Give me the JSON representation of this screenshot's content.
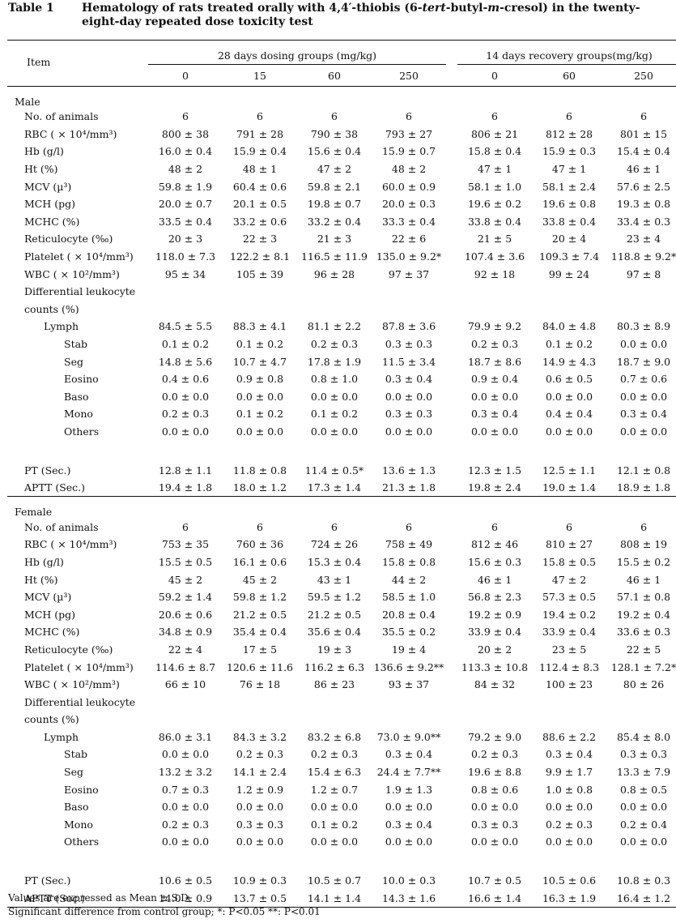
{
  "caption": {
    "label": "Table 1",
    "title_before": "Hematology of rats treated orally with 4,4′-thiobis (6-",
    "title_italic1": "tert",
    "title_mid": "-butyl-",
    "title_italic2": "m",
    "title_after": "-cresol) in the twenty-eight-day repeated dose toxicity test"
  },
  "header": {
    "item": "Item",
    "group1": "28 days dosing groups (mg/kg)",
    "group2": "14 days recovery groups(mg/kg)",
    "doses1": [
      "0",
      "15",
      "60",
      "250"
    ],
    "doses2": [
      "0",
      "60",
      "250"
    ]
  },
  "sections": [
    {
      "title": "Male",
      "rows": [
        {
          "label": "No. of animals",
          "indent": 1,
          "values": [
            "6",
            "6",
            "6",
            "6",
            "6",
            "6",
            "6"
          ]
        },
        {
          "label": "RBC ( × 10⁴/mm³)",
          "indent": 1,
          "values": [
            "800 ± 38",
            "791 ± 28",
            "790 ± 38",
            "793 ± 27",
            "806 ± 21",
            "812 ± 28",
            "801 ± 15"
          ]
        },
        {
          "label": "Hb (g/l)",
          "indent": 1,
          "values": [
            "16.0 ± 0.4",
            "15.9 ± 0.4",
            "15.6 ± 0.4",
            "15.9 ± 0.7",
            "15.8 ± 0.4",
            "15.9 ± 0.3",
            "15.4 ± 0.4"
          ]
        },
        {
          "label": "Ht (%)",
          "indent": 1,
          "values": [
            "48 ± 2",
            "48 ± 1",
            "47 ± 2",
            "48 ± 2",
            "47 ± 1",
            "47 ± 1",
            "46 ± 1"
          ]
        },
        {
          "label": "MCV (µ³)",
          "indent": 1,
          "values": [
            "59.8 ± 1.9",
            "60.4 ± 0.6",
            "59.8 ± 2.1",
            "60.0 ± 0.9",
            "58.1 ± 1.0",
            "58.1 ± 2.4",
            "57.6 ± 2.5"
          ]
        },
        {
          "label": "MCH (pg)",
          "indent": 1,
          "values": [
            "20.0 ± 0.7",
            "20.1 ± 0.5",
            "19.8 ± 0.7",
            "20.0 ± 0.3",
            "19.6 ± 0.2",
            "19.6 ± 0.8",
            "19.3 ± 0.8"
          ]
        },
        {
          "label": "MCHC (%)",
          "indent": 1,
          "values": [
            "33.5 ± 0.4",
            "33.2 ± 0.6",
            "33.2 ± 0.4",
            "33.3 ± 0.4",
            "33.8 ± 0.4",
            "33.8 ± 0.4",
            "33.4 ± 0.3"
          ]
        },
        {
          "label": "Reticulocyte (‰)",
          "indent": 1,
          "values": [
            "20 ± 3",
            "22 ± 3",
            "21 ± 3",
            "22 ± 6",
            "21 ± 5",
            "20 ± 4",
            "23 ± 4"
          ]
        },
        {
          "label": "Platelet ( × 10⁴/mm³)",
          "indent": 1,
          "values": [
            "118.0 ± 7.3",
            "122.2 ± 8.1",
            "116.5 ± 11.9",
            "135.0 ± 9.2*",
            "107.4 ± 3.6",
            "109.3 ± 7.4",
            "118.8 ± 9.2*"
          ]
        },
        {
          "label": "WBC ( × 10²/mm³)",
          "indent": 1,
          "values": [
            "95 ± 34",
            "105 ± 39",
            "96 ± 28",
            "97 ± 37",
            "92 ± 18",
            "99 ± 24",
            "97 ± 8"
          ]
        },
        {
          "label": "Differential leukocyte",
          "indent": 1,
          "values": [
            "",
            "",
            "",
            "",
            "",
            "",
            ""
          ]
        },
        {
          "label": "counts (%)",
          "indent": 1,
          "values": [
            "",
            "",
            "",
            "",
            "",
            "",
            ""
          ]
        },
        {
          "label": "Lymph",
          "indent": 2,
          "values": [
            "84.5 ± 5.5",
            "88.3 ± 4.1",
            "81.1 ± 2.2",
            "87.8 ± 3.6",
            "79.9 ± 9.2",
            "84.0 ± 4.8",
            "80.3 ± 8.9"
          ]
        },
        {
          "label": "Stab",
          "indent": 3,
          "values": [
            "0.1 ± 0.2",
            "0.1 ± 0.2",
            "0.2 ± 0.3",
            "0.3 ± 0.3",
            "0.2 ± 0.3",
            "0.1 ± 0.2",
            "0.0 ± 0.0"
          ]
        },
        {
          "label": "Seg",
          "indent": 3,
          "values": [
            "14.8 ± 5.6",
            "10.7 ± 4.7",
            "17.8 ± 1.9",
            "11.5 ± 3.4",
            "18.7 ± 8.6",
            "14.9 ± 4.3",
            "18.7 ± 9.0"
          ]
        },
        {
          "label": "Eosino",
          "indent": 3,
          "values": [
            "0.4 ± 0.6",
            "0.9 ± 0.8",
            "0.8 ± 1.0",
            "0.3 ± 0.4",
            "0.9 ± 0.4",
            "0.6 ± 0.5",
            "0.7 ± 0.6"
          ]
        },
        {
          "label": "Baso",
          "indent": 3,
          "values": [
            "0.0 ± 0.0",
            "0.0 ± 0.0",
            "0.0 ± 0.0",
            "0.0 ± 0.0",
            "0.0 ± 0.0",
            "0.0 ± 0.0",
            "0.0 ± 0.0"
          ]
        },
        {
          "label": "Mono",
          "indent": 3,
          "values": [
            "0.2 ± 0.3",
            "0.1 ± 0.2",
            "0.1 ± 0.2",
            "0.3 ± 0.3",
            "0.3 ± 0.4",
            "0.4 ± 0.4",
            "0.3 ± 0.4"
          ]
        },
        {
          "label": "Others",
          "indent": 3,
          "values": [
            "0.0 ± 0.0",
            "0.0 ± 0.0",
            "0.0 ± 0.0",
            "0.0 ± 0.0",
            "0.0 ± 0.0",
            "0.0 ± 0.0",
            "0.0 ± 0.0"
          ]
        },
        {
          "label": "",
          "indent": 1,
          "blank": true,
          "values": [
            "",
            "",
            "",
            "",
            "",
            "",
            ""
          ]
        },
        {
          "label": "PT (Sec.)",
          "indent": 1,
          "values": [
            "12.8 ± 1.1",
            "11.8 ± 0.8",
            "11.4 ± 0.5*",
            "13.6 ± 1.3",
            "12.3 ± 1.5",
            "12.5 ± 1.1",
            "12.1 ± 0.8"
          ]
        },
        {
          "label": "APTT (Sec.)",
          "indent": 1,
          "values": [
            "19.4 ± 1.8",
            "18.0 ± 1.2",
            "17.3 ± 1.4",
            "21.3 ± 1.8",
            "19.8 ± 2.4",
            "19.0 ± 1.4",
            "18.9 ± 1.8"
          ]
        }
      ]
    },
    {
      "title": "Female",
      "rows": [
        {
          "label": "No. of animals",
          "indent": 1,
          "values": [
            "6",
            "6",
            "6",
            "6",
            "6",
            "6",
            "6"
          ]
        },
        {
          "label": "RBC ( × 10⁴/mm³)",
          "indent": 1,
          "values": [
            "753 ± 35",
            "760 ± 36",
            "724 ± 26",
            "758 ± 49",
            "812 ± 46",
            "810 ± 27",
            "808 ± 19"
          ]
        },
        {
          "label": "Hb (g/l)",
          "indent": 1,
          "values": [
            "15.5 ± 0.5",
            "16.1 ± 0.6",
            "15.3 ± 0.4",
            "15.8 ± 0.8",
            "15.6 ± 0.3",
            "15.8 ± 0.5",
            "15.5 ± 0.2"
          ]
        },
        {
          "label": "Ht (%)",
          "indent": 1,
          "values": [
            "45 ± 2",
            "45 ± 2",
            "43 ± 1",
            "44 ± 2",
            "46 ± 1",
            "47 ± 2",
            "46 ± 1"
          ]
        },
        {
          "label": "MCV (µ³)",
          "indent": 1,
          "values": [
            "59.2 ± 1.4",
            "59.8 ± 1.2",
            "59.5 ± 1.2",
            "58.5 ± 1.0",
            "56.8 ± 2.3",
            "57.3 ± 0.5",
            "57.1 ± 0.8"
          ]
        },
        {
          "label": "MCH (pg)",
          "indent": 1,
          "values": [
            "20.6 ± 0.6",
            "21.2 ± 0.5",
            "21.2 ± 0.5",
            "20.8 ± 0.4",
            "19.2 ± 0.9",
            "19.4 ± 0.2",
            "19.2 ± 0.4"
          ]
        },
        {
          "label": "MCHC (%)",
          "indent": 1,
          "values": [
            "34.8 ± 0.9",
            "35.4 ± 0.4",
            "35.6 ± 0.4",
            "35.5 ± 0.2",
            "33.9 ± 0.4",
            "33.9 ± 0.4",
            "33.6 ± 0.3"
          ]
        },
        {
          "label": "Reticulocyte (‰)",
          "indent": 1,
          "values": [
            "22 ± 4",
            "17 ± 5",
            "19 ± 3",
            "19 ± 4",
            "20 ± 2",
            "23 ± 5",
            "22 ± 5"
          ]
        },
        {
          "label": "Platelet ( × 10⁴/mm³)",
          "indent": 1,
          "values": [
            "114.6 ± 8.7",
            "120.6 ± 11.6",
            "116.2 ± 6.3",
            "136.6 ± 9.2**",
            "113.3 ± 10.8",
            "112.4 ± 8.3",
            "128.1 ± 7.2*"
          ]
        },
        {
          "label": "WBC ( × 10²/mm³)",
          "indent": 1,
          "values": [
            "66 ± 10",
            "76 ± 18",
            "86 ± 23",
            "93 ± 37",
            "84 ± 32",
            "100 ± 23",
            "80 ± 26"
          ]
        },
        {
          "label": "Differential leukocyte",
          "indent": 1,
          "values": [
            "",
            "",
            "",
            "",
            "",
            "",
            ""
          ]
        },
        {
          "label": "counts (%)",
          "indent": 1,
          "values": [
            "",
            "",
            "",
            "",
            "",
            "",
            ""
          ]
        },
        {
          "label": "Lymph",
          "indent": 2,
          "values": [
            "86.0 ± 3.1",
            "84.3 ± 3.2",
            "83.2 ± 6.8",
            "73.0 ± 9.0**",
            "79.2 ± 9.0",
            "88.6 ± 2.2",
            "85.4 ± 8.0"
          ]
        },
        {
          "label": "Stab",
          "indent": 3,
          "values": [
            "0.0 ± 0.0",
            "0.2 ± 0.3",
            "0.2 ± 0.3",
            "0.3 ± 0.4",
            "0.2 ± 0.3",
            "0.3 ± 0.4",
            "0.3 ± 0.3"
          ]
        },
        {
          "label": "Seg",
          "indent": 3,
          "values": [
            "13.2 ± 3.2",
            "14.1 ± 2.4",
            "15.4 ± 6.3",
            "24.4 ± 7.7**",
            "19.6 ± 8.8",
            "9.9 ± 1.7",
            "13.3 ± 7.9"
          ]
        },
        {
          "label": "Eosino",
          "indent": 3,
          "values": [
            "0.7 ± 0.3",
            "1.2 ± 0.9",
            "1.2 ± 0.7",
            "1.9 ± 1.3",
            "0.8 ± 0.6",
            "1.0 ± 0.8",
            "0.8 ± 0.5"
          ]
        },
        {
          "label": "Baso",
          "indent": 3,
          "values": [
            "0.0 ± 0.0",
            "0.0 ± 0.0",
            "0.0 ± 0.0",
            "0.0 ± 0.0",
            "0.0 ± 0.0",
            "0.0 ± 0.0",
            "0.0 ± 0.0"
          ]
        },
        {
          "label": "Mono",
          "indent": 3,
          "values": [
            "0.2 ± 0.3",
            "0.3 ± 0.3",
            "0.1 ± 0.2",
            "0.3 ± 0.4",
            "0.3 ± 0.3",
            "0.2 ± 0.3",
            "0.2 ± 0.4"
          ]
        },
        {
          "label": "Others",
          "indent": 3,
          "values": [
            "0.0 ± 0.0",
            "0.0 ± 0.0",
            "0.0 ± 0.0",
            "0.0 ± 0.0",
            "0.0 ± 0.0",
            "0.0 ± 0.0",
            "0.0 ± 0.0"
          ]
        },
        {
          "label": "",
          "indent": 1,
          "blank": true,
          "values": [
            "",
            "",
            "",
            "",
            "",
            "",
            ""
          ]
        },
        {
          "label": "PT (Sec.)",
          "indent": 1,
          "values": [
            "10.6 ± 0.5",
            "10.9 ± 0.3",
            "10.5 ± 0.7",
            "10.0 ± 0.3",
            "10.7 ± 0.5",
            "10.5 ± 0.6",
            "10.8 ± 0.3"
          ]
        },
        {
          "label": "APTT (Sec.)",
          "indent": 1,
          "values": [
            "14.0 ± 0.9",
            "13.7 ± 0.5",
            "14.1 ± 1.4",
            "14.3 ± 1.6",
            "16.6 ± 1.4",
            "16.3 ± 1.9",
            "16.4 ± 1.2"
          ]
        }
      ]
    }
  ],
  "notes": [
    "Values are expressed as Mean ± S.D.",
    "Significant difference from control group;  *: P<0.05  **: P<0.01"
  ]
}
